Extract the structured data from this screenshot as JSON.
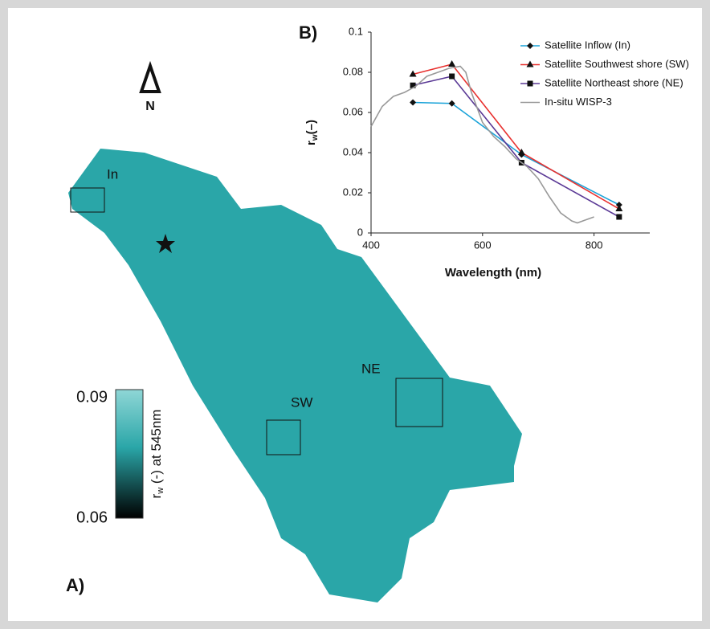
{
  "chart_data": {
    "type": "line",
    "panel_label": "B)",
    "xlabel": "Wavelength (nm)",
    "ylabel": {
      "main": "r",
      "sub": "w",
      "suffix": "(–)"
    },
    "xlim": [
      400,
      900
    ],
    "xticks": [
      400,
      600,
      800
    ],
    "ylim": [
      0,
      0.1
    ],
    "yticks": [
      0,
      0.02,
      0.04,
      0.06,
      0.08,
      0.1
    ],
    "series": [
      {
        "name": "Satellite Inflow (In)",
        "color": "#1aa3d9",
        "marker": "diamond",
        "x": [
          475,
          545,
          670,
          845
        ],
        "values": [
          0.065,
          0.0645,
          0.039,
          0.014
        ]
      },
      {
        "name": "Satellite Southwest shore (SW)",
        "color": "#e8312f",
        "marker": "triangle",
        "x": [
          475,
          545,
          670,
          845
        ],
        "values": [
          0.079,
          0.084,
          0.04,
          0.012
        ]
      },
      {
        "name": "Satellite Northeast shore (NE)",
        "color": "#5b3a96",
        "marker": "square",
        "x": [
          475,
          545,
          670,
          845
        ],
        "values": [
          0.0735,
          0.078,
          0.035,
          0.008
        ]
      },
      {
        "name": "In-situ WISP-3",
        "color": "#999999",
        "marker": "none",
        "x": [
          400,
          420,
          440,
          460,
          480,
          500,
          520,
          540,
          560,
          570,
          580,
          600,
          620,
          640,
          660,
          680,
          700,
          720,
          740,
          760,
          770,
          780,
          800
        ],
        "values": [
          0.053,
          0.063,
          0.068,
          0.07,
          0.073,
          0.078,
          0.08,
          0.082,
          0.083,
          0.08,
          0.07,
          0.055,
          0.048,
          0.043,
          0.037,
          0.033,
          0.027,
          0.018,
          0.01,
          0.006,
          0.005,
          0.006,
          0.008
        ]
      }
    ]
  },
  "map": {
    "panel_label": "A)",
    "north": "N",
    "sites": [
      "In",
      "SW",
      "NE"
    ],
    "colorbar": {
      "label_main": "r",
      "label_sub": "w",
      "label_suffix": " (-) at 545nm",
      "range": [
        0.06,
        0.09
      ],
      "ticks": [
        0.06,
        0.09
      ]
    }
  }
}
